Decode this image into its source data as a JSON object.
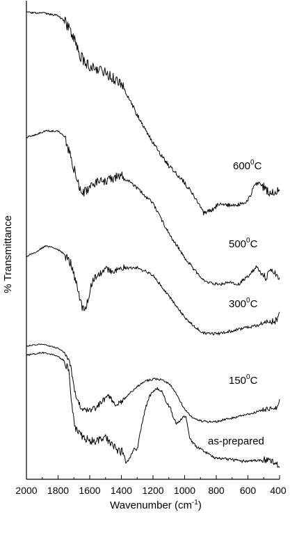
{
  "chart_data": {
    "type": "line",
    "xlabel": "Wavenumber (cm",
    "xlabel_sup": "-1",
    "xlabel_end": ")",
    "ylabel": "% Transmittance",
    "xlim": [
      2000,
      400
    ],
    "x_reversed": true,
    "yticks_shown": false,
    "xticks": [
      2000,
      1800,
      1600,
      1400,
      1200,
      1000,
      800,
      600,
      400
    ],
    "xtick_labels": [
      "2000",
      "1800",
      "1600",
      "1400",
      "1200",
      "1000",
      "800",
      "600",
      "400"
    ],
    "grid": false,
    "line_color": "#000000",
    "series": [
      {
        "label_main": "600",
        "label_sup": "0",
        "label_end": "C",
        "noise": 3.0,
        "points": [
          [
            2000,
            18
          ],
          [
            1900,
            19
          ],
          [
            1800,
            22
          ],
          [
            1750,
            33
          ],
          [
            1700,
            55
          ],
          [
            1660,
            80
          ],
          [
            1620,
            92
          ],
          [
            1580,
            96
          ],
          [
            1500,
            104
          ],
          [
            1420,
            118
          ],
          [
            1380,
            128
          ],
          [
            1300,
            165
          ],
          [
            1200,
            205
          ],
          [
            1100,
            238
          ],
          [
            1000,
            262
          ],
          [
            900,
            296
          ],
          [
            880,
            306
          ],
          [
            860,
            304
          ],
          [
            820,
            300
          ],
          [
            780,
            292
          ],
          [
            740,
            293
          ],
          [
            700,
            296
          ],
          [
            660,
            294
          ],
          [
            620,
            290
          ],
          [
            590,
            284
          ],
          [
            560,
            265
          ],
          [
            530,
            263
          ],
          [
            500,
            268
          ],
          [
            470,
            275
          ],
          [
            430,
            278
          ],
          [
            400,
            268
          ]
        ]
      },
      {
        "label_main": "500",
        "label_sup": "0",
        "label_end": "C",
        "noise": 2.5,
        "points": [
          [
            2000,
            197
          ],
          [
            1950,
            194
          ],
          [
            1880,
            188
          ],
          [
            1800,
            188
          ],
          [
            1760,
            196
          ],
          [
            1720,
            225
          ],
          [
            1680,
            258
          ],
          [
            1650,
            278
          ],
          [
            1620,
            274
          ],
          [
            1580,
            263
          ],
          [
            1500,
            260
          ],
          [
            1400,
            252
          ],
          [
            1380,
            256
          ],
          [
            1300,
            270
          ],
          [
            1200,
            292
          ],
          [
            1100,
            335
          ],
          [
            1000,
            370
          ],
          [
            900,
            398
          ],
          [
            850,
            406
          ],
          [
            800,
            408
          ],
          [
            750,
            407
          ],
          [
            700,
            405
          ],
          [
            660,
            408
          ],
          [
            620,
            400
          ],
          [
            580,
            392
          ],
          [
            545,
            383
          ],
          [
            520,
            390
          ],
          [
            490,
            398
          ],
          [
            450,
            388
          ],
          [
            420,
            394
          ],
          [
            400,
            400
          ]
        ]
      },
      {
        "label_main": "300",
        "label_sup": "0",
        "label_end": "C",
        "noise": 2.2,
        "points": [
          [
            2000,
            368
          ],
          [
            1950,
            363
          ],
          [
            1880,
            353
          ],
          [
            1820,
            356
          ],
          [
            1770,
            363
          ],
          [
            1720,
            378
          ],
          [
            1680,
            410
          ],
          [
            1650,
            440
          ],
          [
            1630,
            445
          ],
          [
            1610,
            430
          ],
          [
            1580,
            400
          ],
          [
            1550,
            395
          ],
          [
            1500,
            387
          ],
          [
            1450,
            388
          ],
          [
            1400,
            385
          ],
          [
            1300,
            384
          ],
          [
            1200,
            395
          ],
          [
            1100,
            425
          ],
          [
            1000,
            455
          ],
          [
            930,
            470
          ],
          [
            880,
            478
          ],
          [
            800,
            479
          ],
          [
            700,
            475
          ],
          [
            600,
            470
          ],
          [
            500,
            465
          ],
          [
            420,
            460
          ],
          [
            400,
            445
          ]
        ]
      },
      {
        "label_main": "150",
        "label_sup": "0",
        "label_end": "C",
        "noise": 1.6,
        "points": [
          [
            2000,
            497
          ],
          [
            1950,
            495
          ],
          [
            1900,
            494
          ],
          [
            1850,
            497
          ],
          [
            1800,
            500
          ],
          [
            1750,
            508
          ],
          [
            1720,
            525
          ],
          [
            1700,
            555
          ],
          [
            1680,
            575
          ],
          [
            1650,
            587
          ],
          [
            1600,
            590
          ],
          [
            1560,
            585
          ],
          [
            1510,
            574
          ],
          [
            1480,
            568
          ],
          [
            1440,
            580
          ],
          [
            1400,
            577
          ],
          [
            1350,
            565
          ],
          [
            1300,
            555
          ],
          [
            1250,
            547
          ],
          [
            1200,
            544
          ],
          [
            1150,
            545
          ],
          [
            1100,
            550
          ],
          [
            1050,
            566
          ],
          [
            1000,
            588
          ],
          [
            950,
            600
          ],
          [
            900,
            604
          ],
          [
            850,
            606
          ],
          [
            800,
            605
          ],
          [
            700,
            600
          ],
          [
            600,
            595
          ],
          [
            500,
            588
          ],
          [
            420,
            585
          ],
          [
            400,
            575
          ]
        ]
      },
      {
        "label_main": "as-prepared",
        "label_sup": "",
        "label_end": "",
        "noise": 2.2,
        "points": [
          [
            2000,
            510
          ],
          [
            1950,
            508
          ],
          [
            1900,
            506
          ],
          [
            1850,
            508
          ],
          [
            1800,
            512
          ],
          [
            1760,
            518
          ],
          [
            1730,
            535
          ],
          [
            1710,
            590
          ],
          [
            1690,
            615
          ],
          [
            1670,
            623
          ],
          [
            1620,
            630
          ],
          [
            1560,
            635
          ],
          [
            1530,
            630
          ],
          [
            1500,
            627
          ],
          [
            1470,
            636
          ],
          [
            1450,
            640
          ],
          [
            1420,
            648
          ],
          [
            1390,
            648
          ],
          [
            1370,
            665
          ],
          [
            1350,
            660
          ],
          [
            1320,
            645
          ],
          [
            1300,
            645
          ],
          [
            1280,
            620
          ],
          [
            1250,
            588
          ],
          [
            1220,
            568
          ],
          [
            1190,
            560
          ],
          [
            1170,
            558
          ],
          [
            1140,
            563
          ],
          [
            1110,
            580
          ],
          [
            1090,
            585
          ],
          [
            1070,
            600
          ],
          [
            1050,
            608
          ],
          [
            1030,
            605
          ],
          [
            1010,
            598
          ],
          [
            990,
            600
          ],
          [
            970,
            628
          ],
          [
            940,
            638
          ],
          [
            900,
            645
          ],
          [
            800,
            658
          ],
          [
            700,
            660
          ],
          [
            600,
            663
          ],
          [
            500,
            660
          ],
          [
            420,
            665
          ],
          [
            400,
            670
          ]
        ]
      }
    ]
  }
}
